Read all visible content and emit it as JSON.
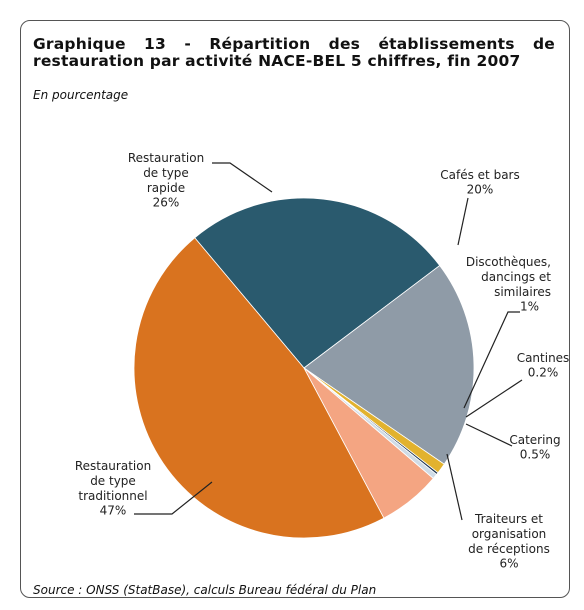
{
  "chart_data": {
    "type": "pie",
    "title": "Graphique 13 - Répartition des établissements de restauration par activité NACE-BEL 5 chiffres, fin 2007",
    "subtitle": "En pourcentage",
    "source": "Source : ONSS (StatBase), calculs Bureau fédéral du Plan",
    "categories": [
      "Restauration\nde type\nrapide",
      "Cafés et bars",
      "Discothèques,\ndancings et\nsimilaires",
      "Cantines",
      "Catering",
      "Traiteurs et\norganisation\nde réceptions",
      "Restauration\nde type\ntraditionnel"
    ],
    "values": [
      26,
      20,
      1,
      0.2,
      0.5,
      6,
      47
    ],
    "value_labels": [
      "26%",
      "20%",
      "1%",
      "0.2%",
      "0.5%",
      "6%",
      "47%"
    ],
    "colors": [
      "#2a5a6e",
      "#8f9ba7",
      "#e2b22e",
      "#1d3550",
      "#cfdbe6",
      "#f4a582",
      "#d9731f"
    ]
  }
}
